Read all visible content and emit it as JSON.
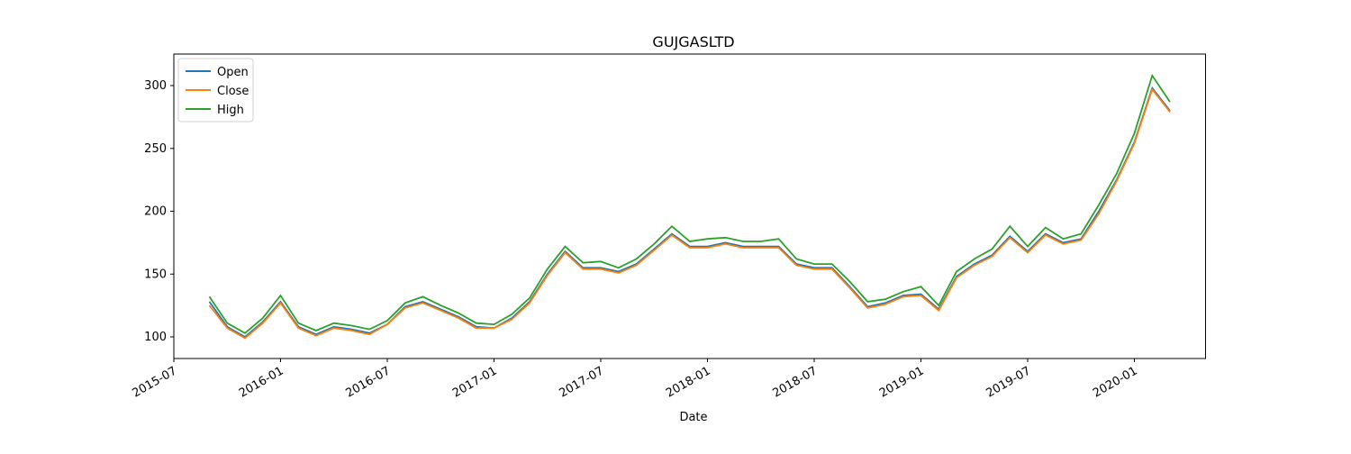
{
  "chart_data": {
    "type": "line",
    "title": "GUJGASLTD",
    "x_label": "Date",
    "x": [
      "2015-09",
      "2015-10",
      "2015-11",
      "2015-12",
      "2016-01",
      "2016-02",
      "2016-03",
      "2016-04",
      "2016-05",
      "2016-06",
      "2016-07",
      "2016-08",
      "2016-09",
      "2016-10",
      "2016-11",
      "2016-12",
      "2017-01",
      "2017-02",
      "2017-03",
      "2017-04",
      "2017-05",
      "2017-06",
      "2017-07",
      "2017-08",
      "2017-09",
      "2017-10",
      "2017-11",
      "2017-12",
      "2018-01",
      "2018-02",
      "2018-03",
      "2018-04",
      "2018-05",
      "2018-06",
      "2018-07",
      "2018-08",
      "2018-09",
      "2018-10",
      "2018-11",
      "2018-12",
      "2019-01",
      "2019-02",
      "2019-03",
      "2019-04",
      "2019-05",
      "2019-06",
      "2019-07",
      "2019-08",
      "2019-09",
      "2019-10",
      "2019-11",
      "2019-12",
      "2020-01",
      "2020-02",
      "2020-03"
    ],
    "series": [
      {
        "name": "Open",
        "color": "#1f77b4",
        "values": [
          128,
          108,
          100,
          112,
          128,
          108,
          102,
          108,
          106,
          103,
          110,
          124,
          128,
          122,
          116,
          108,
          107,
          115,
          128,
          150,
          168,
          155,
          155,
          152,
          158,
          170,
          182,
          172,
          172,
          175,
          172,
          172,
          172,
          158,
          155,
          155,
          140,
          124,
          127,
          133,
          134,
          122,
          148,
          158,
          165,
          180,
          168,
          182,
          175,
          178,
          200,
          225,
          255,
          298,
          280
        ]
      },
      {
        "name": "Close",
        "color": "#ff7f0e",
        "values": [
          125,
          107,
          99,
          111,
          127,
          107,
          101,
          107,
          105,
          102,
          110,
          123,
          127,
          121,
          115,
          107,
          107,
          114,
          127,
          149,
          167,
          154,
          154,
          151,
          157,
          169,
          181,
          171,
          171,
          174,
          171,
          171,
          171,
          157,
          154,
          154,
          139,
          123,
          126,
          132,
          133,
          121,
          147,
          157,
          164,
          179,
          167,
          181,
          174,
          177,
          198,
          224,
          254,
          297,
          279
        ]
      },
      {
        "name": "High",
        "color": "#2ca02c",
        "values": [
          132,
          111,
          103,
          115,
          133,
          111,
          105,
          111,
          109,
          106,
          113,
          127,
          132,
          125,
          119,
          111,
          110,
          118,
          131,
          154,
          172,
          159,
          160,
          155,
          162,
          174,
          188,
          176,
          178,
          179,
          176,
          176,
          178,
          162,
          158,
          158,
          144,
          128,
          130,
          136,
          140,
          125,
          152,
          162,
          170,
          188,
          172,
          187,
          178,
          182,
          205,
          230,
          262,
          308,
          287
        ]
      }
    ],
    "xlim": [
      "2015-07",
      "2020-05"
    ],
    "xticks": [
      "2015-07",
      "2016-01",
      "2016-07",
      "2017-01",
      "2017-07",
      "2018-01",
      "2018-07",
      "2019-01",
      "2019-07",
      "2020-01"
    ],
    "ylim": [
      82.8,
      325.1
    ],
    "yticks": [
      100,
      150,
      200,
      250,
      300
    ],
    "legend": "upper left"
  }
}
